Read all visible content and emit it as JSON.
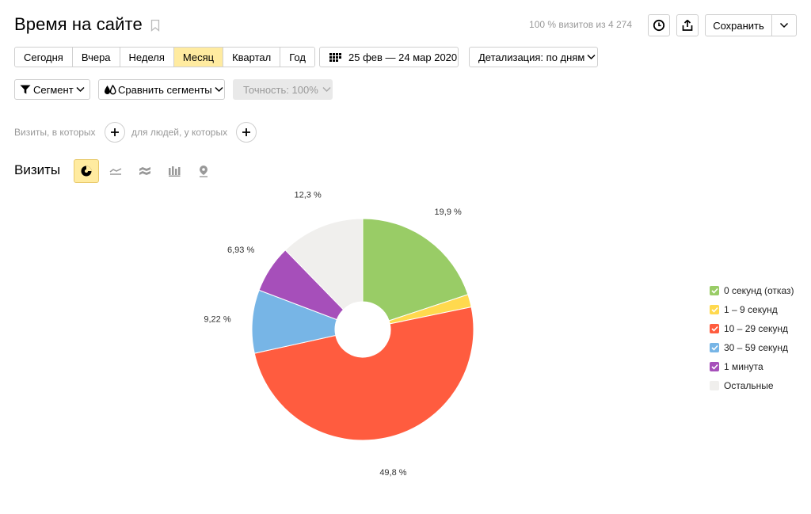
{
  "header": {
    "title": "Время на сайте",
    "visits_info": "100 % визитов из 4 274",
    "save_label": "Сохранить"
  },
  "period": {
    "options": [
      "Сегодня",
      "Вчера",
      "Неделя",
      "Месяц",
      "Квартал",
      "Год"
    ],
    "active": "Месяц",
    "date_range": "25 фев — 24 мар 2020",
    "detail": "Детализация: по дням"
  },
  "segments": {
    "segment_label": "Сегмент",
    "compare_label": "Сравнить сегменты",
    "accuracy_label": "Точность: 100%"
  },
  "filters": {
    "visits_label": "Визиты, в которых",
    "people_label": "для людей, у которых"
  },
  "chart_header": {
    "label": "Визиты",
    "types": [
      "pie-chart-icon",
      "line-chart-icon",
      "area-chart-icon",
      "bar-chart-icon",
      "map-pin-icon"
    ],
    "active_type": "pie-chart-icon"
  },
  "colors": {
    "accent": "#ffeba0",
    "green": "#99cc66",
    "yellow": "#ffd94e",
    "red": "#ff5c3f",
    "blue": "#77b5e6",
    "purple": "#a64fba",
    "gray": "#f0efed"
  },
  "chart_data": {
    "type": "pie",
    "donut": true,
    "slices": [
      {
        "name": "0 секунд (отказ)",
        "value": 19.9,
        "label": "19,9 %",
        "color": "#99cc66",
        "checked": true
      },
      {
        "name": "1 – 9 секунд",
        "value": 1.85,
        "label": "",
        "color": "#ffd94e",
        "checked": true
      },
      {
        "name": "10 – 29 секунд",
        "value": 49.8,
        "label": "49,8 %",
        "color": "#ff5c3f",
        "checked": true
      },
      {
        "name": "30 – 59 секунд",
        "value": 9.22,
        "label": "9,22 %",
        "color": "#77b5e6",
        "checked": true
      },
      {
        "name": "1 минута",
        "value": 6.93,
        "label": "6,93 %",
        "color": "#a64fba",
        "checked": true
      },
      {
        "name": "Остальные",
        "value": 12.3,
        "label": "12,3 %",
        "color": "#f0efed",
        "checked": false
      }
    ],
    "legend_position": "right"
  }
}
